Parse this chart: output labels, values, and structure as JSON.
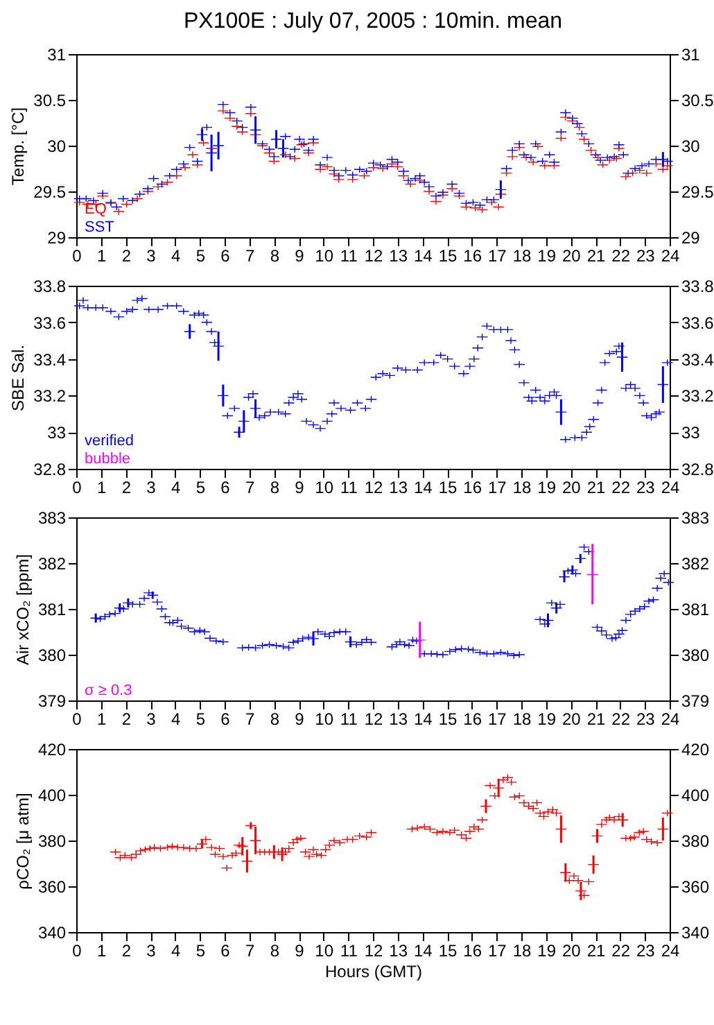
{
  "chart_data": [
    {
      "type": "scatter",
      "title": "PX100E : July 07, 2005 : 10min. mean",
      "ylabel": "Temp. [°C]",
      "marker": "cross",
      "legend": "bottom left",
      "xlim": [
        0,
        24
      ],
      "xticks": [
        0,
        1,
        2,
        3,
        4,
        5,
        6,
        7,
        8,
        9,
        10,
        11,
        12,
        13,
        14,
        15,
        16,
        17,
        18,
        19,
        20,
        21,
        22,
        23,
        24
      ],
      "ylim": [
        29,
        31
      ],
      "yticks": [
        29,
        29.5,
        30,
        30.5,
        31
      ],
      "y2lim": [
        29,
        31
      ],
      "y2ticks": [
        29,
        29.5,
        30,
        30.5,
        31
      ],
      "series": [
        {
          "name": "EQ",
          "color": "#ff0000",
          "x": [
            0.13,
            0.47,
            0.79,
            1.07,
            1.4,
            1.72,
            2.04,
            2.47,
            2.9,
            3.31,
            3.69,
            4.06,
            4.4,
            4.71,
            4.9,
            5.15,
            5.47,
            5.94,
            6.22,
            6.5,
            6.72,
            7.06,
            7.25,
            7.53,
            7.81,
            8.0,
            8.46,
            8.84,
            9.12,
            9.4,
            9.59,
            9.87,
            10.15,
            10.43,
            10.62,
            11.18,
            11.65,
            12.02,
            12.4,
            12.77,
            13.0,
            13.24,
            13.52,
            13.9,
            14.27,
            14.55,
            14.83,
            15.2,
            15.49,
            15.77,
            16.14,
            16.42,
            16.8,
            17.08,
            17.17,
            17.4,
            17.64,
            17.92,
            18.2,
            18.48,
            18.67,
            18.95,
            19.33,
            19.61,
            19.79,
            20.07,
            20.35,
            20.54,
            20.82,
            21.1,
            21.3,
            21.57,
            21.85,
            21.95,
            22.23,
            22.5,
            22.79,
            23.07,
            23.45,
            23.73,
            23.91
          ],
          "values": [
            29.38,
            29.36,
            29.36,
            29.45,
            29.37,
            29.28,
            29.36,
            29.42,
            29.5,
            29.55,
            29.6,
            29.67,
            29.76,
            29.9,
            29.79,
            30.03,
            29.97,
            30.38,
            30.3,
            30.21,
            30.15,
            30.35,
            30.12,
            30.0,
            29.92,
            29.83,
            29.9,
            29.86,
            30.01,
            29.92,
            30.03,
            29.74,
            29.77,
            29.69,
            29.63,
            29.63,
            29.67,
            29.76,
            29.75,
            29.8,
            29.77,
            29.67,
            29.58,
            29.62,
            29.5,
            29.39,
            29.46,
            29.53,
            29.45,
            29.33,
            29.32,
            29.3,
            29.38,
            29.33,
            29.47,
            29.7,
            29.88,
            29.98,
            29.87,
            29.82,
            29.99,
            29.78,
            29.78,
            30.08,
            30.31,
            30.27,
            30.2,
            30.07,
            29.95,
            29.87,
            29.79,
            29.84,
            29.86,
            29.97,
            29.66,
            29.7,
            29.73,
            29.7,
            29.8,
            29.74,
            29.78
          ]
        },
        {
          "name": "SST",
          "color": "#0000ff",
          "x": [
            0.13,
            0.4,
            0.7,
            1.07,
            1.4,
            1.63,
            1.9,
            2.28,
            2.57,
            2.9,
            3.13,
            3.46,
            3.78,
            4.06,
            4.34,
            4.59,
            4.9,
            5.09,
            5.28,
            5.47,
            5.75,
            5.94,
            6.22,
            6.5,
            6.72,
            7.06,
            7.25,
            7.53,
            7.81,
            8.0,
            8.09,
            8.37,
            8.46,
            8.65,
            8.84,
            9.03,
            9.21,
            9.4,
            9.59,
            9.87,
            10.15,
            10.43,
            10.62,
            10.9,
            11.18,
            11.46,
            11.74,
            12.02,
            12.3,
            12.58,
            12.77,
            13.0,
            13.24,
            13.43,
            13.71,
            13.9,
            14.08,
            14.27,
            14.55,
            14.83,
            15.2,
            15.49,
            15.77,
            16.05,
            16.33,
            16.61,
            16.89,
            17.17,
            17.4,
            17.64,
            17.92,
            18.11,
            18.39,
            18.58,
            18.86,
            19.14,
            19.33,
            19.61,
            19.79,
            20.07,
            20.26,
            20.45,
            20.73,
            21.01,
            21.2,
            21.48,
            21.76,
            21.95,
            22.13,
            22.32,
            22.6,
            22.88,
            23.16,
            23.45,
            23.73,
            23.91
          ],
          "values": [
            29.42,
            29.42,
            29.4,
            29.48,
            29.38,
            29.33,
            29.42,
            29.4,
            29.47,
            29.53,
            29.64,
            29.58,
            29.67,
            29.74,
            29.8,
            29.98,
            29.83,
            30.12,
            30.2,
            29.92,
            30.0,
            30.45,
            30.36,
            30.27,
            30.2,
            30.42,
            30.17,
            30.02,
            29.96,
            29.88,
            30.07,
            29.97,
            30.1,
            29.88,
            29.96,
            30.07,
            30.02,
            29.95,
            30.07,
            29.79,
            29.87,
            29.73,
            29.67,
            29.73,
            29.68,
            29.74,
            29.72,
            29.81,
            29.79,
            29.77,
            29.85,
            29.82,
            29.72,
            29.62,
            29.64,
            29.67,
            29.6,
            29.55,
            29.45,
            29.49,
            29.58,
            29.48,
            29.37,
            29.38,
            29.35,
            29.41,
            29.41,
            29.52,
            29.75,
            29.95,
            30.02,
            29.9,
            29.87,
            30.02,
            29.83,
            29.9,
            29.82,
            30.15,
            30.36,
            30.3,
            30.24,
            30.13,
            30.02,
            29.9,
            29.84,
            29.87,
            29.88,
            30.01,
            29.9,
            29.7,
            29.75,
            29.78,
            29.8,
            29.85,
            29.85,
            29.83
          ],
          "errors": [
            null,
            null,
            null,
            null,
            null,
            null,
            null,
            null,
            null,
            null,
            null,
            null,
            null,
            null,
            null,
            null,
            null,
            0.07,
            null,
            0.2,
            0.15,
            null,
            null,
            null,
            null,
            null,
            0.15,
            null,
            null,
            null,
            0.1,
            0.1,
            null,
            null,
            null,
            null,
            null,
            null,
            null,
            null,
            null,
            null,
            null,
            null,
            null,
            null,
            null,
            null,
            null,
            null,
            null,
            null,
            null,
            null,
            null,
            null,
            null,
            null,
            null,
            null,
            null,
            null,
            null,
            null,
            null,
            null,
            null,
            0.1,
            null,
            null,
            null,
            null,
            null,
            null,
            null,
            null,
            null,
            null,
            null,
            null,
            null,
            null,
            null,
            null,
            null,
            null,
            null,
            null,
            null,
            null,
            null,
            null,
            null,
            null,
            0.08,
            null
          ]
        }
      ]
    },
    {
      "type": "scatter",
      "ylabel": "SBE Sal.",
      "marker": "cross",
      "legend": "bottom left",
      "xlim": [
        0,
        24
      ],
      "xticks": [
        0,
        1,
        2,
        3,
        4,
        5,
        6,
        7,
        8,
        9,
        10,
        11,
        12,
        13,
        14,
        15,
        16,
        17,
        18,
        19,
        20,
        21,
        22,
        23,
        24
      ],
      "ylim": [
        32.8,
        33.8
      ],
      "yticks": [
        32.8,
        33,
        33.2,
        33.4,
        33.6,
        33.8
      ],
      "y2lim": [
        32.8,
        33.8
      ],
      "y2ticks": [
        32.8,
        33,
        33.2,
        33.4,
        33.6,
        33.8
      ],
      "series": [
        {
          "name": "verified",
          "color": "#0000ff",
          "x": [
            0.13,
            0.28,
            0.47,
            0.79,
            1.07,
            1.4,
            1.72,
            2.04,
            2.28,
            2.47,
            2.66,
            2.94,
            3.31,
            3.69,
            4.06,
            4.34,
            4.59,
            4.78,
            4.96,
            5.15,
            5.28,
            5.47,
            5.6,
            5.75,
            5.94,
            6.12,
            6.4,
            6.59,
            6.78,
            6.97,
            7.15,
            7.25,
            7.4,
            7.62,
            7.85,
            8.18,
            8.46,
            8.6,
            8.78,
            8.97,
            9.12,
            9.31,
            9.59,
            9.87,
            10.15,
            10.34,
            10.43,
            10.71,
            11.09,
            11.37,
            11.7,
            11.93,
            12.12,
            12.4,
            12.68,
            13.0,
            13.33,
            13.8,
            14.08,
            14.46,
            14.74,
            15.02,
            15.3,
            15.67,
            15.92,
            16.09,
            16.24,
            16.42,
            16.61,
            16.89,
            17.17,
            17.45,
            17.58,
            17.73,
            17.92,
            18.11,
            18.3,
            18.43,
            18.58,
            18.76,
            18.95,
            19.14,
            19.33,
            19.42,
            19.61,
            19.79,
            20.17,
            20.45,
            20.64,
            20.77,
            20.92,
            21.1,
            21.25,
            21.38,
            21.57,
            21.85,
            21.95,
            22.08,
            22.23,
            22.42,
            22.6,
            22.79,
            22.94,
            23.07,
            23.26,
            23.45,
            23.58,
            23.73,
            23.91
          ],
          "values": [
            33.69,
            33.72,
            33.68,
            33.68,
            33.68,
            33.66,
            33.63,
            33.66,
            33.67,
            33.72,
            33.73,
            33.67,
            33.67,
            33.69,
            33.69,
            33.66,
            33.55,
            33.64,
            33.65,
            33.64,
            33.6,
            33.55,
            33.49,
            33.47,
            33.2,
            33.09,
            33.13,
            33.0,
            33.06,
            33.19,
            33.21,
            33.13,
            33.08,
            33.09,
            33.11,
            33.11,
            33.1,
            33.16,
            33.19,
            33.21,
            33.18,
            33.06,
            33.04,
            33.02,
            33.06,
            33.1,
            33.16,
            33.13,
            33.12,
            33.16,
            33.13,
            33.18,
            33.3,
            33.32,
            33.31,
            33.35,
            33.34,
            33.34,
            33.38,
            33.38,
            33.42,
            33.4,
            33.36,
            33.32,
            33.36,
            33.4,
            33.46,
            33.52,
            33.58,
            33.56,
            33.56,
            33.56,
            33.5,
            33.45,
            33.37,
            33.27,
            33.19,
            33.17,
            33.23,
            33.19,
            33.17,
            33.2,
            33.22,
            33.2,
            33.11,
            32.96,
            32.97,
            32.97,
            33.0,
            33.03,
            33.07,
            33.16,
            33.23,
            33.38,
            33.43,
            33.44,
            33.47,
            33.41,
            33.24,
            33.26,
            33.24,
            33.2,
            33.16,
            33.09,
            33.08,
            33.1,
            33.11,
            33.26,
            33.38
          ],
          "errors": [
            null,
            null,
            null,
            null,
            null,
            null,
            null,
            null,
            null,
            null,
            null,
            null,
            null,
            null,
            null,
            null,
            0.04,
            null,
            null,
            null,
            null,
            null,
            null,
            0.08,
            0.06,
            null,
            null,
            0.03,
            0.06,
            null,
            null,
            0.05,
            null,
            null,
            null,
            null,
            null,
            null,
            null,
            null,
            null,
            null,
            null,
            null,
            null,
            null,
            null,
            null,
            null,
            null,
            null,
            null,
            null,
            null,
            null,
            null,
            null,
            null,
            null,
            null,
            null,
            null,
            null,
            null,
            null,
            null,
            null,
            null,
            null,
            null,
            null,
            null,
            null,
            null,
            null,
            null,
            null,
            null,
            null,
            null,
            null,
            null,
            null,
            null,
            0.07,
            null,
            null,
            null,
            null,
            null,
            null,
            null,
            null,
            null,
            null,
            null,
            null,
            0.08,
            null,
            null,
            null,
            null,
            null,
            null,
            null,
            null,
            null,
            0.1,
            null
          ]
        },
        {
          "name": "bubble",
          "color": "#ff00ff"
        }
      ]
    },
    {
      "type": "scatter",
      "ylabel": "Air xCO₂ [ppm]",
      "marker": "cross",
      "legend": "bottom left",
      "xlim": [
        0,
        24
      ],
      "xticks": [
        0,
        1,
        2,
        3,
        4,
        5,
        6,
        7,
        8,
        9,
        10,
        11,
        12,
        13,
        14,
        15,
        16,
        17,
        18,
        19,
        20,
        21,
        22,
        23,
        24
      ],
      "ylim": [
        379,
        383
      ],
      "yticks": [
        379,
        380,
        381,
        382,
        383
      ],
      "y2lim": [
        379,
        383
      ],
      "y2ticks": [
        379,
        380,
        381,
        382,
        383
      ],
      "series": [
        {
          "color": "#0000ff",
          "x": [
            0.79,
            0.97,
            1.16,
            1.35,
            1.57,
            1.76,
            1.91,
            2.1,
            2.28,
            2.57,
            2.75,
            2.94,
            3.09,
            3.28,
            3.46,
            3.6,
            3.78,
            3.91,
            4.1,
            4.25,
            4.53,
            4.78,
            5.0,
            5.19,
            5.41,
            5.66,
            5.94,
            6.72,
            6.97,
            7.25,
            7.53,
            7.81,
            8.09,
            8.37,
            8.6,
            8.78,
            8.97,
            9.16,
            9.4,
            9.59,
            9.78,
            10.06,
            10.24,
            10.43,
            10.66,
            10.9,
            11.09,
            11.33,
            11.55,
            11.74,
            11.93,
            12.77,
            12.96,
            13.09,
            13.28,
            13.46,
            13.61,
            13.76,
            14.08,
            14.36,
            14.59,
            14.83,
            15.11,
            15.34,
            15.58,
            15.86,
            16.05,
            16.33,
            16.61,
            16.89,
            17.17,
            17.45,
            17.7,
            17.92,
            18.76,
            18.95,
            19.08,
            19.23,
            19.42,
            19.57,
            19.74,
            19.89,
            20.07,
            20.2,
            20.39,
            20.54,
            20.73,
            21.07,
            21.25,
            21.44,
            21.67,
            21.82,
            21.95,
            22.08,
            22.23,
            22.42,
            22.6,
            22.79,
            22.98,
            23.16,
            23.34,
            23.5,
            23.64,
            23.78,
            23.95
          ],
          "values": [
            380.8,
            380.78,
            380.83,
            380.88,
            380.9,
            381.02,
            381.0,
            381.13,
            381.1,
            381.1,
            381.23,
            381.35,
            381.3,
            381.15,
            381.0,
            380.83,
            380.7,
            380.7,
            380.75,
            380.62,
            380.58,
            380.5,
            380.53,
            380.5,
            380.36,
            380.3,
            380.28,
            380.15,
            380.16,
            380.15,
            380.2,
            380.22,
            380.2,
            380.18,
            380.15,
            380.27,
            380.3,
            380.35,
            380.38,
            380.35,
            380.5,
            380.45,
            380.4,
            380.48,
            380.5,
            380.5,
            380.28,
            380.22,
            380.27,
            380.33,
            380.27,
            380.17,
            380.22,
            380.28,
            380.22,
            380.2,
            380.32,
            380.3,
            380.02,
            380.02,
            380.01,
            380.0,
            380.07,
            380.11,
            380.13,
            380.12,
            380.1,
            380.05,
            380.02,
            380.02,
            380.05,
            380.02,
            379.98,
            380.0,
            380.77,
            380.67,
            380.75,
            381.13,
            381.02,
            381.1,
            381.7,
            381.83,
            381.85,
            381.77,
            382.1,
            382.35,
            382.25,
            380.6,
            380.52,
            380.43,
            380.35,
            380.37,
            380.45,
            380.53,
            380.75,
            380.88,
            380.95,
            381.0,
            381.05,
            381.17,
            381.2,
            381.45,
            381.67,
            381.77,
            381.58
          ],
          "errors": [
            0.1,
            null,
            null,
            null,
            null,
            0.1,
            null,
            0.1,
            null,
            null,
            null,
            null,
            0.08,
            null,
            null,
            null,
            null,
            null,
            null,
            null,
            null,
            null,
            null,
            null,
            null,
            null,
            null,
            null,
            null,
            null,
            null,
            null,
            null,
            null,
            null,
            null,
            null,
            null,
            null,
            0.15,
            null,
            null,
            null,
            null,
            null,
            null,
            0.12,
            null,
            null,
            null,
            null,
            null,
            null,
            null,
            null,
            null,
            null,
            null,
            null,
            null,
            null,
            null,
            null,
            null,
            null,
            null,
            null,
            null,
            null,
            null,
            null,
            null,
            null,
            null,
            null,
            null,
            0.15,
            null,
            0.12,
            null,
            0.12,
            null,
            0.1,
            null,
            0.1,
            null,
            null,
            null,
            null,
            null,
            null,
            null,
            null,
            null,
            null,
            null,
            null,
            null,
            null,
            null,
            null,
            null,
            null,
            null,
            null
          ]
        },
        {
          "name": "σ ≥ 0.3",
          "color": "#ff00ff",
          "x": [
            13.9,
            20.88
          ],
          "values": [
            380.32,
            381.75
          ],
          "errors": [
            [
              379.93,
              380.72
            ],
            [
              381.1,
              382.42
            ]
          ]
        }
      ]
    },
    {
      "type": "scatter",
      "ylabel": "ρCO₂ [μ atm]",
      "xlabel": "Hours (GMT)",
      "marker": "cross",
      "xlim": [
        0,
        24
      ],
      "xticks": [
        0,
        1,
        2,
        3,
        4,
        5,
        6,
        7,
        8,
        9,
        10,
        11,
        12,
        13,
        14,
        15,
        16,
        17,
        18,
        19,
        20,
        21,
        22,
        23,
        24
      ],
      "ylim": [
        340,
        420
      ],
      "yticks": [
        340,
        360,
        380,
        400,
        420
      ],
      "y2lim": [
        340,
        420
      ],
      "y2ticks": [
        340,
        360,
        380,
        400,
        420
      ],
      "series": [
        {
          "color": "#ff0000",
          "x": [
            1.59,
            1.78,
            1.97,
            2.23,
            2.42,
            2.6,
            2.79,
            2.98,
            3.16,
            3.41,
            3.69,
            3.88,
            4.1,
            4.34,
            4.59,
            4.85,
            5.09,
            5.24,
            5.47,
            5.62,
            5.79,
            5.94,
            6.09,
            6.31,
            6.46,
            6.59,
            6.72,
            6.91,
            7.06,
            7.25,
            7.43,
            7.62,
            7.81,
            8.0,
            8.18,
            8.33,
            8.46,
            8.6,
            8.78,
            8.93,
            9.08,
            9.27,
            9.42,
            9.59,
            9.72,
            9.91,
            10.09,
            10.24,
            10.43,
            10.66,
            10.96,
            11.18,
            11.46,
            11.74,
            11.93,
            13.58,
            13.8,
            14.08,
            14.31,
            14.59,
            14.83,
            15.11,
            15.3,
            15.58,
            15.77,
            15.92,
            16.09,
            16.27,
            16.42,
            16.57,
            16.74,
            16.93,
            17.08,
            17.27,
            17.45,
            17.6,
            17.73,
            17.92,
            18.11,
            18.3,
            18.48,
            18.63,
            18.76,
            18.91,
            19.08,
            19.27,
            19.42,
            19.61,
            19.79,
            19.94,
            20.13,
            20.3,
            20.41,
            20.54,
            20.73,
            20.92,
            21.07,
            21.25,
            21.44,
            21.57,
            21.76,
            21.95,
            22.1,
            22.23,
            22.42,
            22.57,
            22.77,
            22.94,
            23.07,
            23.26,
            23.5,
            23.73,
            23.91
          ],
          "values": [
            375,
            372.5,
            373.5,
            372.5,
            374,
            375.5,
            376,
            376.5,
            377,
            376.5,
            377,
            377.5,
            377,
            377,
            376.5,
            376.5,
            378.5,
            380.5,
            377,
            374,
            376.5,
            373,
            368,
            373.5,
            374.5,
            378,
            377.5,
            371,
            386.5,
            380,
            375,
            375,
            375,
            375,
            375,
            374,
            375,
            376.5,
            379,
            380.5,
            381,
            375,
            373,
            376,
            374,
            373.5,
            376,
            378,
            380,
            379,
            380.5,
            380.5,
            382,
            381.5,
            383.5,
            385,
            385.5,
            386,
            385,
            383.5,
            384,
            383.5,
            384.5,
            382.5,
            381,
            384,
            386,
            385,
            389,
            395,
            404,
            399.5,
            403,
            406.5,
            407.5,
            405.5,
            399,
            399.5,
            396.5,
            395,
            394,
            396.5,
            392,
            390.5,
            392.5,
            393.5,
            392,
            385,
            366,
            362.5,
            364.5,
            362.5,
            358,
            356,
            362,
            369.5,
            382,
            387,
            389,
            390,
            389,
            390.5,
            389,
            381,
            381,
            381.5,
            383.5,
            384,
            380.5,
            379.5,
            379,
            385,
            392
          ],
          "errors": [
            null,
            null,
            null,
            null,
            null,
            null,
            null,
            null,
            null,
            null,
            null,
            null,
            null,
            null,
            null,
            null,
            2,
            null,
            null,
            null,
            null,
            null,
            null,
            null,
            null,
            null,
            4,
            5,
            1.5,
            6,
            null,
            null,
            null,
            3,
            null,
            3,
            null,
            null,
            null,
            null,
            null,
            null,
            null,
            null,
            null,
            null,
            null,
            null,
            null,
            null,
            null,
            null,
            null,
            null,
            null,
            null,
            null,
            null,
            null,
            null,
            null,
            null,
            null,
            null,
            null,
            null,
            null,
            null,
            null,
            3,
            null,
            null,
            4,
            null,
            null,
            null,
            null,
            null,
            null,
            null,
            null,
            null,
            null,
            null,
            null,
            null,
            null,
            6,
            4,
            null,
            null,
            null,
            4,
            null,
            null,
            4,
            3,
            null,
            null,
            null,
            null,
            null,
            3,
            null,
            null,
            null,
            null,
            null,
            null,
            null,
            null,
            5,
            null
          ]
        }
      ]
    }
  ]
}
